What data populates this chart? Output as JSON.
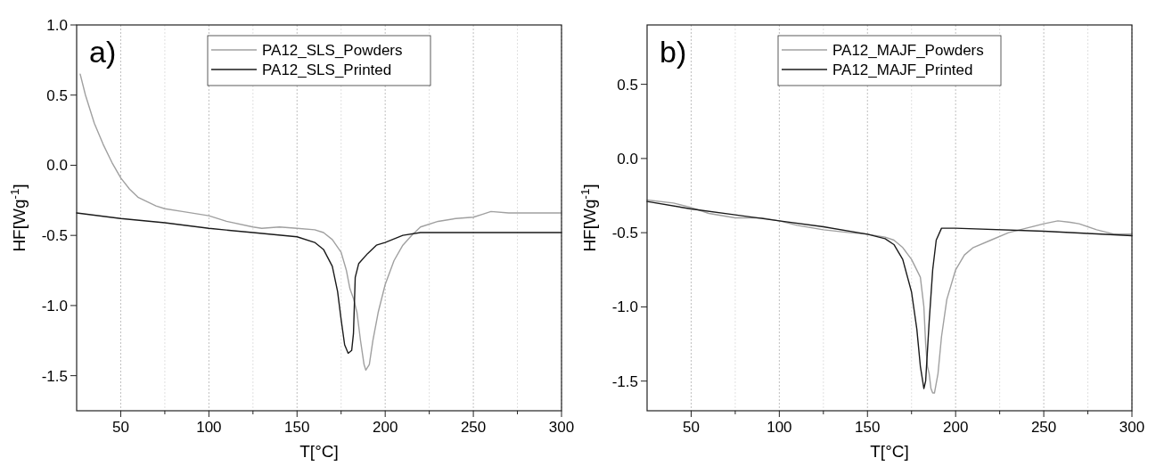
{
  "chart_data": [
    {
      "type": "line",
      "xlabel": "T[°C]",
      "ylabel": "HF[Wg$^{-1}$]",
      "annotations": [
        "a)"
      ],
      "xlim": [
        25,
        300
      ],
      "ylim": [
        -1.75,
        1.0
      ],
      "xticks": [
        50,
        {
          "value": 75,
          "label": null
        },
        100,
        {
          "value": 125,
          "label": null
        },
        150,
        {
          "value": 175,
          "label": null
        },
        200,
        {
          "value": 225,
          "label": null
        },
        250,
        {
          "value": 275,
          "label": null
        },
        300
      ],
      "yticks": [
        {
          "value": -1.5,
          "label": "-1.5"
        },
        {
          "value": -1,
          "label": "-1.0"
        },
        {
          "value": -0.5,
          "label": "-0.5"
        },
        {
          "value": 0,
          "label": "0.0"
        },
        0.5,
        {
          "value": 1,
          "label": "1.0"
        }
      ],
      "grid": "x",
      "legend": "top",
      "line_style": "solid",
      "marker": "none",
      "series": [
        {
          "name": "PA12_SLS_Powders",
          "color": "#a0a0a0",
          "x": [
            27,
            30,
            35,
            40,
            45,
            50,
            55,
            60,
            70,
            75,
            85,
            100,
            110,
            125,
            130,
            140,
            150,
            160,
            165,
            170,
            175,
            178,
            180,
            182,
            184,
            186,
            188,
            189,
            191,
            193,
            196,
            200,
            205,
            210,
            215,
            220,
            230,
            240,
            250,
            255,
            260,
            270,
            290,
            300
          ],
          "values": [
            0.65,
            0.5,
            0.3,
            0.15,
            0.02,
            -0.09,
            -0.17,
            -0.23,
            -0.29,
            -0.31,
            -0.33,
            -0.36,
            -0.4,
            -0.44,
            -0.45,
            -0.44,
            -0.45,
            -0.46,
            -0.48,
            -0.53,
            -0.62,
            -0.75,
            -0.88,
            -0.95,
            -1.05,
            -1.25,
            -1.42,
            -1.46,
            -1.42,
            -1.25,
            -1.05,
            -0.85,
            -0.68,
            -0.57,
            -0.5,
            -0.44,
            -0.4,
            -0.38,
            -0.37,
            -0.35,
            -0.33,
            -0.34,
            -0.34,
            -0.34
          ]
        },
        {
          "name": "PA12_SLS_Printed",
          "color": "#1a1a1a",
          "x": [
            25,
            50,
            75,
            100,
            125,
            150,
            160,
            165,
            170,
            173,
            175,
            177,
            179,
            181,
            182,
            183,
            185,
            190,
            195,
            200,
            210,
            220,
            300
          ],
          "values": [
            -0.34,
            -0.38,
            -0.41,
            -0.45,
            -0.48,
            -0.51,
            -0.55,
            -0.6,
            -0.72,
            -0.9,
            -1.1,
            -1.28,
            -1.34,
            -1.32,
            -1.2,
            -0.8,
            -0.7,
            -0.63,
            -0.57,
            -0.55,
            -0.5,
            -0.48,
            -0.48
          ]
        }
      ]
    },
    {
      "type": "line",
      "xlabel": "T[°C]",
      "ylabel": "HF[Wg$^{-1}$]",
      "annotations": [
        "b)"
      ],
      "xlim": [
        25,
        300
      ],
      "ylim": [
        -1.7,
        0.9
      ],
      "xticks": [
        50,
        {
          "value": 75,
          "label": null
        },
        100,
        {
          "value": 125,
          "label": null
        },
        150,
        {
          "value": 175,
          "label": null
        },
        200,
        {
          "value": 225,
          "label": null
        },
        250,
        {
          "value": 275,
          "label": null
        },
        300
      ],
      "yticks": [
        {
          "value": -1.5,
          "label": "-1.5"
        },
        {
          "value": -1,
          "label": "-1.0"
        },
        {
          "value": -0.5,
          "label": "-0.5"
        },
        {
          "value": 0,
          "label": "0.0"
        },
        0.5
      ],
      "grid": "x",
      "legend": "top",
      "line_style": "solid",
      "marker": "none",
      "series": [
        {
          "name": "PA12_MAJF_Powders",
          "color": "#a0a0a0",
          "x": [
            25,
            40,
            50,
            60,
            75,
            90,
            100,
            110,
            125,
            140,
            150,
            160,
            165,
            170,
            175,
            180,
            182,
            183,
            184,
            185,
            186,
            187,
            188,
            190,
            192,
            195,
            200,
            205,
            210,
            220,
            230,
            240,
            250,
            258,
            265,
            270,
            280,
            290,
            300
          ],
          "values": [
            -0.28,
            -0.3,
            -0.33,
            -0.37,
            -0.4,
            -0.4,
            -0.42,
            -0.45,
            -0.48,
            -0.5,
            -0.51,
            -0.53,
            -0.55,
            -0.6,
            -0.68,
            -0.8,
            -1.0,
            -1.25,
            -1.4,
            -1.45,
            -1.55,
            -1.58,
            -1.58,
            -1.45,
            -1.2,
            -0.95,
            -0.75,
            -0.65,
            -0.6,
            -0.55,
            -0.5,
            -0.47,
            -0.44,
            -0.42,
            -0.43,
            -0.44,
            -0.48,
            -0.51,
            -0.51
          ]
        },
        {
          "name": "PA12_MAJF_Printed",
          "color": "#1a1a1a",
          "x": [
            25,
            50,
            75,
            100,
            125,
            150,
            160,
            165,
            170,
            175,
            178,
            180,
            182,
            183,
            185,
            187,
            189,
            192,
            200,
            250,
            300
          ],
          "values": [
            -0.29,
            -0.34,
            -0.38,
            -0.42,
            -0.46,
            -0.51,
            -0.54,
            -0.58,
            -0.68,
            -0.9,
            -1.15,
            -1.4,
            -1.55,
            -1.5,
            -1.1,
            -0.75,
            -0.55,
            -0.47,
            -0.47,
            -0.49,
            -0.52
          ]
        }
      ]
    }
  ]
}
